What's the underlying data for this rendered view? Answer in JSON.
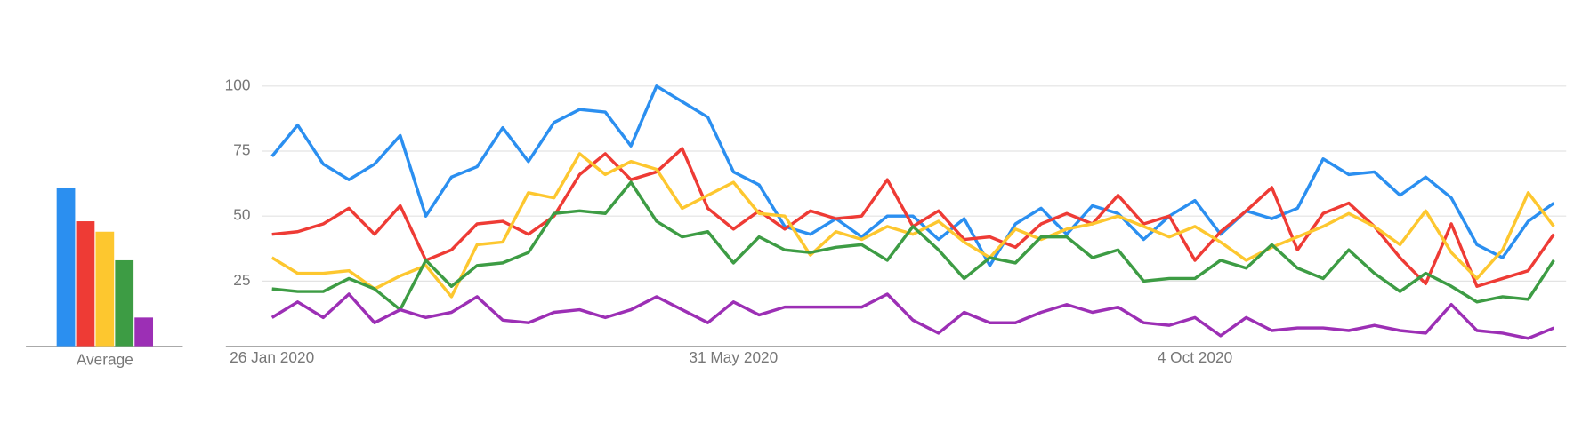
{
  "chart_data": [
    {
      "type": "bar",
      "xlabel": "Average",
      "values": [
        61,
        48,
        44,
        33,
        11
      ],
      "colors": [
        "#2b8ff0",
        "#ee3b35",
        "#fdc72f",
        "#3d9c44",
        "#9c2fb5"
      ],
      "ylim": [
        0,
        100
      ]
    },
    {
      "type": "line",
      "categories": [
        "26 Jan 2020",
        null,
        null,
        null,
        null,
        null,
        null,
        null,
        null,
        null,
        null,
        null,
        null,
        null,
        null,
        null,
        null,
        null,
        "31 May 2020",
        null,
        null,
        null,
        null,
        null,
        null,
        null,
        null,
        null,
        null,
        null,
        null,
        null,
        null,
        null,
        null,
        null,
        "4 Oct 2020",
        null,
        null,
        null,
        null,
        null,
        null,
        null,
        null,
        null,
        null,
        null,
        null,
        null,
        null
      ],
      "ylim": [
        0,
        100
      ],
      "yticks": [
        25,
        50,
        75,
        100
      ],
      "grid": true,
      "series": [
        {
          "color": "#2b8ff0",
          "values": [
            73,
            85,
            70,
            64,
            70,
            81,
            50,
            65,
            69,
            84,
            71,
            86,
            91,
            90,
            77,
            100,
            94,
            88,
            67,
            62,
            46,
            43,
            49,
            42,
            50,
            50,
            41,
            49,
            31,
            47,
            53,
            43,
            54,
            51,
            41,
            50,
            56,
            43,
            52,
            49,
            53,
            72,
            66,
            67,
            58,
            65,
            57,
            39,
            34,
            48,
            55
          ]
        },
        {
          "color": "#ee3b35",
          "values": [
            43,
            44,
            47,
            53,
            43,
            54,
            33,
            37,
            47,
            48,
            43,
            50,
            66,
            74,
            64,
            67,
            76,
            53,
            45,
            52,
            45,
            52,
            49,
            50,
            64,
            46,
            52,
            41,
            42,
            38,
            47,
            51,
            47,
            58,
            47,
            50,
            33,
            44,
            52,
            61,
            37,
            51,
            55,
            46,
            34,
            24,
            47,
            23,
            26,
            29,
            43
          ]
        },
        {
          "color": "#fdc72f",
          "values": [
            34,
            28,
            28,
            29,
            22,
            27,
            31,
            19,
            39,
            40,
            59,
            57,
            74,
            66,
            71,
            68,
            53,
            58,
            63,
            51,
            50,
            35,
            44,
            41,
            46,
            43,
            48,
            40,
            34,
            45,
            41,
            45,
            47,
            50,
            46,
            42,
            46,
            40,
            33,
            38,
            42,
            46,
            51,
            46,
            39,
            52,
            36,
            26,
            37,
            59,
            46
          ]
        },
        {
          "color": "#3d9c44",
          "values": [
            22,
            21,
            21,
            26,
            22,
            14,
            33,
            23,
            31,
            32,
            36,
            51,
            52,
            51,
            63,
            48,
            42,
            44,
            32,
            42,
            37,
            36,
            38,
            39,
            33,
            46,
            37,
            26,
            34,
            32,
            42,
            42,
            34,
            37,
            25,
            26,
            26,
            33,
            30,
            39,
            30,
            26,
            37,
            28,
            21,
            28,
            23,
            17,
            19,
            18,
            33
          ]
        },
        {
          "color": "#9c2fb5",
          "values": [
            11,
            17,
            11,
            20,
            9,
            14,
            11,
            13,
            19,
            10,
            9,
            13,
            14,
            11,
            14,
            19,
            14,
            9,
            17,
            12,
            15,
            15,
            15,
            15,
            20,
            10,
            5,
            13,
            9,
            9,
            13,
            16,
            13,
            15,
            9,
            8,
            11,
            4,
            11,
            6,
            7,
            7,
            6,
            8,
            6,
            5,
            16,
            6,
            5,
            3,
            7
          ]
        }
      ]
    }
  ]
}
